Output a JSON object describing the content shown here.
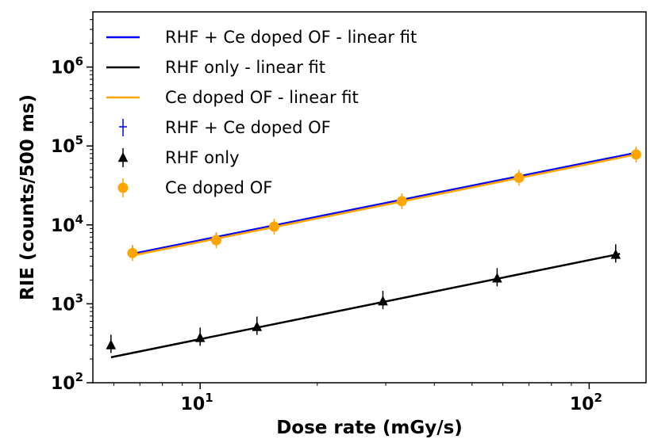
{
  "chart_data": {
    "type": "scatter",
    "xlabel": "Dose rate (mGy/s)",
    "ylabel": "RIE (counts/500 ms)",
    "xscale": "log",
    "yscale": "log",
    "xlim": [
      5.3,
      140
    ],
    "ylim": [
      100,
      5000000
    ],
    "x_ticks": [
      {
        "value": 10,
        "base": "10",
        "exp": "1"
      },
      {
        "value": 100,
        "base": "10",
        "exp": "2"
      }
    ],
    "y_ticks": [
      {
        "value": 100,
        "base": "10",
        "exp": "2"
      },
      {
        "value": 1000,
        "base": "10",
        "exp": "3"
      },
      {
        "value": 10000,
        "base": "10",
        "exp": "4"
      },
      {
        "value": 100000,
        "base": "10",
        "exp": "5"
      },
      {
        "value": 1000000,
        "base": "10",
        "exp": "6"
      }
    ],
    "grid": false,
    "legend_position": "upper-left",
    "colors": {
      "blue": "#0000ff",
      "black": "#000000",
      "orange": "#ffa500"
    },
    "fits": [
      {
        "name": "RHF + Ce doped OF - linear fit",
        "color": "#0000ff",
        "x": [
          6.7,
          132
        ],
        "y": [
          4300,
          82000
        ]
      },
      {
        "name": "RHF only - linear fit",
        "color": "#000000",
        "x": [
          5.9,
          120
        ],
        "y": [
          210,
          4300
        ]
      },
      {
        "name": "Ce doped OF - linear fit",
        "color": "#ffa500",
        "x": [
          6.7,
          132
        ],
        "y": [
          4100,
          78000
        ]
      }
    ],
    "series": [
      {
        "name": "RHF + Ce doped OF",
        "marker": "errorbar",
        "color": "#0000ff",
        "x": [
          6.7,
          11.0,
          15.5,
          33,
          66,
          132
        ],
        "y": [
          4800,
          6900,
          9800,
          20500,
          41000,
          82000
        ]
      },
      {
        "name": "RHF only",
        "marker": "triangle",
        "color": "#000000",
        "x": [
          5.9,
          10.0,
          14.0,
          29.5,
          58,
          117
        ],
        "y": [
          300,
          370,
          510,
          1080,
          2100,
          4200
        ]
      },
      {
        "name": "Ce doped OF",
        "marker": "circle",
        "color": "#ffa500",
        "x": [
          6.7,
          11.0,
          15.5,
          33,
          66,
          132
        ],
        "y": [
          4400,
          6400,
          9500,
          20000,
          39500,
          78000
        ]
      }
    ]
  }
}
